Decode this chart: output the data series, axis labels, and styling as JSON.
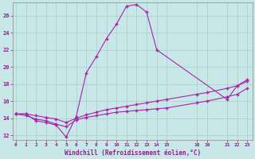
{
  "bg_color": "#c8e8e8",
  "grid_color": "#a8cccc",
  "line_color": "#aa22aa",
  "xlabel": "Windchill (Refroidissement éolien,°C)",
  "xlabel_color": "#882288",
  "tick_color": "#882288",
  "xlim_min": -0.3,
  "xlim_max": 23.5,
  "ylim_min": 11.5,
  "ylim_max": 27.5,
  "yticks": [
    12,
    14,
    16,
    18,
    20,
    22,
    24,
    26
  ],
  "xtick_positions": [
    0,
    1,
    2,
    3,
    4,
    5,
    6,
    7,
    8,
    9,
    10,
    11,
    12,
    13,
    14,
    15,
    18,
    19,
    21,
    22,
    23
  ],
  "xtick_labels": [
    "0",
    "1",
    "2",
    "3",
    "4",
    "5",
    "6",
    "7",
    "8",
    "9",
    "10",
    "11",
    "12",
    "13",
    "14",
    "15",
    "18",
    "19",
    "21",
    "22",
    "23"
  ],
  "curve1_x": [
    0,
    1,
    2,
    3,
    4,
    5,
    6,
    7,
    8,
    9,
    10,
    11,
    12,
    13,
    14,
    21,
    22,
    23
  ],
  "curve1_y": [
    14.5,
    14.5,
    13.7,
    13.5,
    13.2,
    11.8,
    14.2,
    19.3,
    21.2,
    23.3,
    25.0,
    27.1,
    27.3,
    26.4,
    22.0,
    16.2,
    17.8,
    18.3
  ],
  "curve2_x": [
    0,
    1,
    2,
    3,
    4,
    5,
    6,
    7,
    8,
    9,
    10,
    11,
    12,
    13,
    14,
    15,
    18,
    19,
    21,
    22,
    23
  ],
  "curve2_y": [
    14.5,
    14.3,
    13.9,
    13.7,
    13.3,
    13.0,
    13.8,
    14.1,
    14.3,
    14.5,
    14.7,
    14.8,
    14.9,
    15.0,
    15.1,
    15.2,
    15.8,
    16.0,
    16.5,
    16.8,
    17.5
  ],
  "curve3_x": [
    0,
    1,
    2,
    3,
    4,
    5,
    6,
    7,
    8,
    9,
    10,
    11,
    12,
    13,
    14,
    15,
    18,
    19,
    21,
    22,
    23
  ],
  "curve3_y": [
    14.5,
    14.5,
    14.3,
    14.1,
    13.9,
    13.5,
    14.0,
    14.4,
    14.7,
    15.0,
    15.2,
    15.4,
    15.6,
    15.8,
    16.0,
    16.2,
    16.8,
    17.0,
    17.5,
    17.8,
    18.5
  ],
  "figsize": [
    3.2,
    2.0
  ],
  "dpi": 100
}
